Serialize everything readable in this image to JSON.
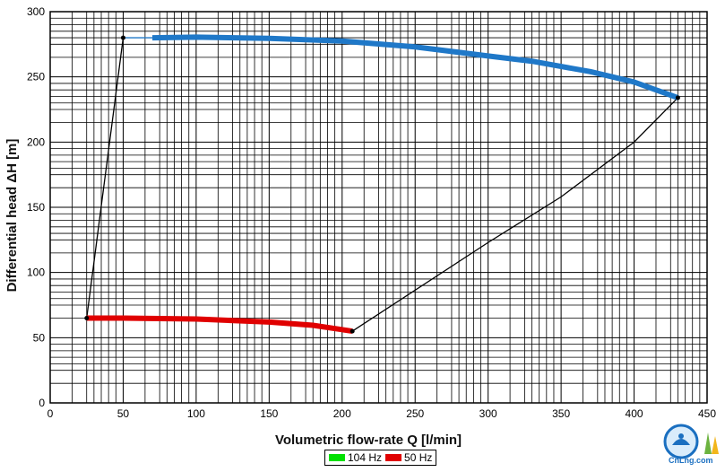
{
  "chart_data": {
    "type": "line",
    "xlabel": "Volumetric flow-rate  Q  [l/min]",
    "ylabel": "Differential head ΔH  [m]",
    "xlim": [
      0,
      450
    ],
    "ylim": [
      0,
      300
    ],
    "x_ticks": [
      0,
      50,
      100,
      150,
      200,
      250,
      300,
      350,
      400,
      450
    ],
    "y_ticks": [
      0,
      50,
      100,
      150,
      200,
      250,
      300
    ],
    "grid": true,
    "legend_placement": "bottom-center",
    "series": [
      {
        "name": "104 Hz",
        "legend_color": "#00e000",
        "color": "#1f78c8",
        "x": [
          70,
          100,
          150,
          200,
          250,
          300,
          330,
          370,
          400,
          430
        ],
        "y": [
          280,
          280.5,
          279.5,
          277.5,
          273,
          266,
          262,
          254,
          246,
          234
        ]
      },
      {
        "name": "50 Hz",
        "legend_color": "#e00000",
        "color": "#e00000",
        "x": [
          25,
          50,
          100,
          150,
          180,
          207
        ],
        "y": [
          65,
          65,
          64.3,
          62,
          59.5,
          55
        ]
      }
    ],
    "boundary_lines": [
      {
        "x": [
          50,
          70
        ],
        "y": [
          280,
          280
        ],
        "color": "#1f78c8"
      },
      {
        "x": [
          50,
          25
        ],
        "y": [
          280,
          65
        ],
        "color": "#000000"
      },
      {
        "x": [
          207,
          300,
          350,
          400,
          430
        ],
        "y": [
          55,
          123,
          158,
          200,
          234
        ],
        "color": "#000000"
      }
    ],
    "endpoints": [
      {
        "x": 50,
        "y": 280
      },
      {
        "x": 25,
        "y": 65
      },
      {
        "x": 207,
        "y": 55
      },
      {
        "x": 430,
        "y": 234
      }
    ]
  },
  "legend": {
    "items": [
      "104 Hz",
      "50 Hz"
    ]
  },
  "logo": {
    "text": "CnLng.com"
  }
}
